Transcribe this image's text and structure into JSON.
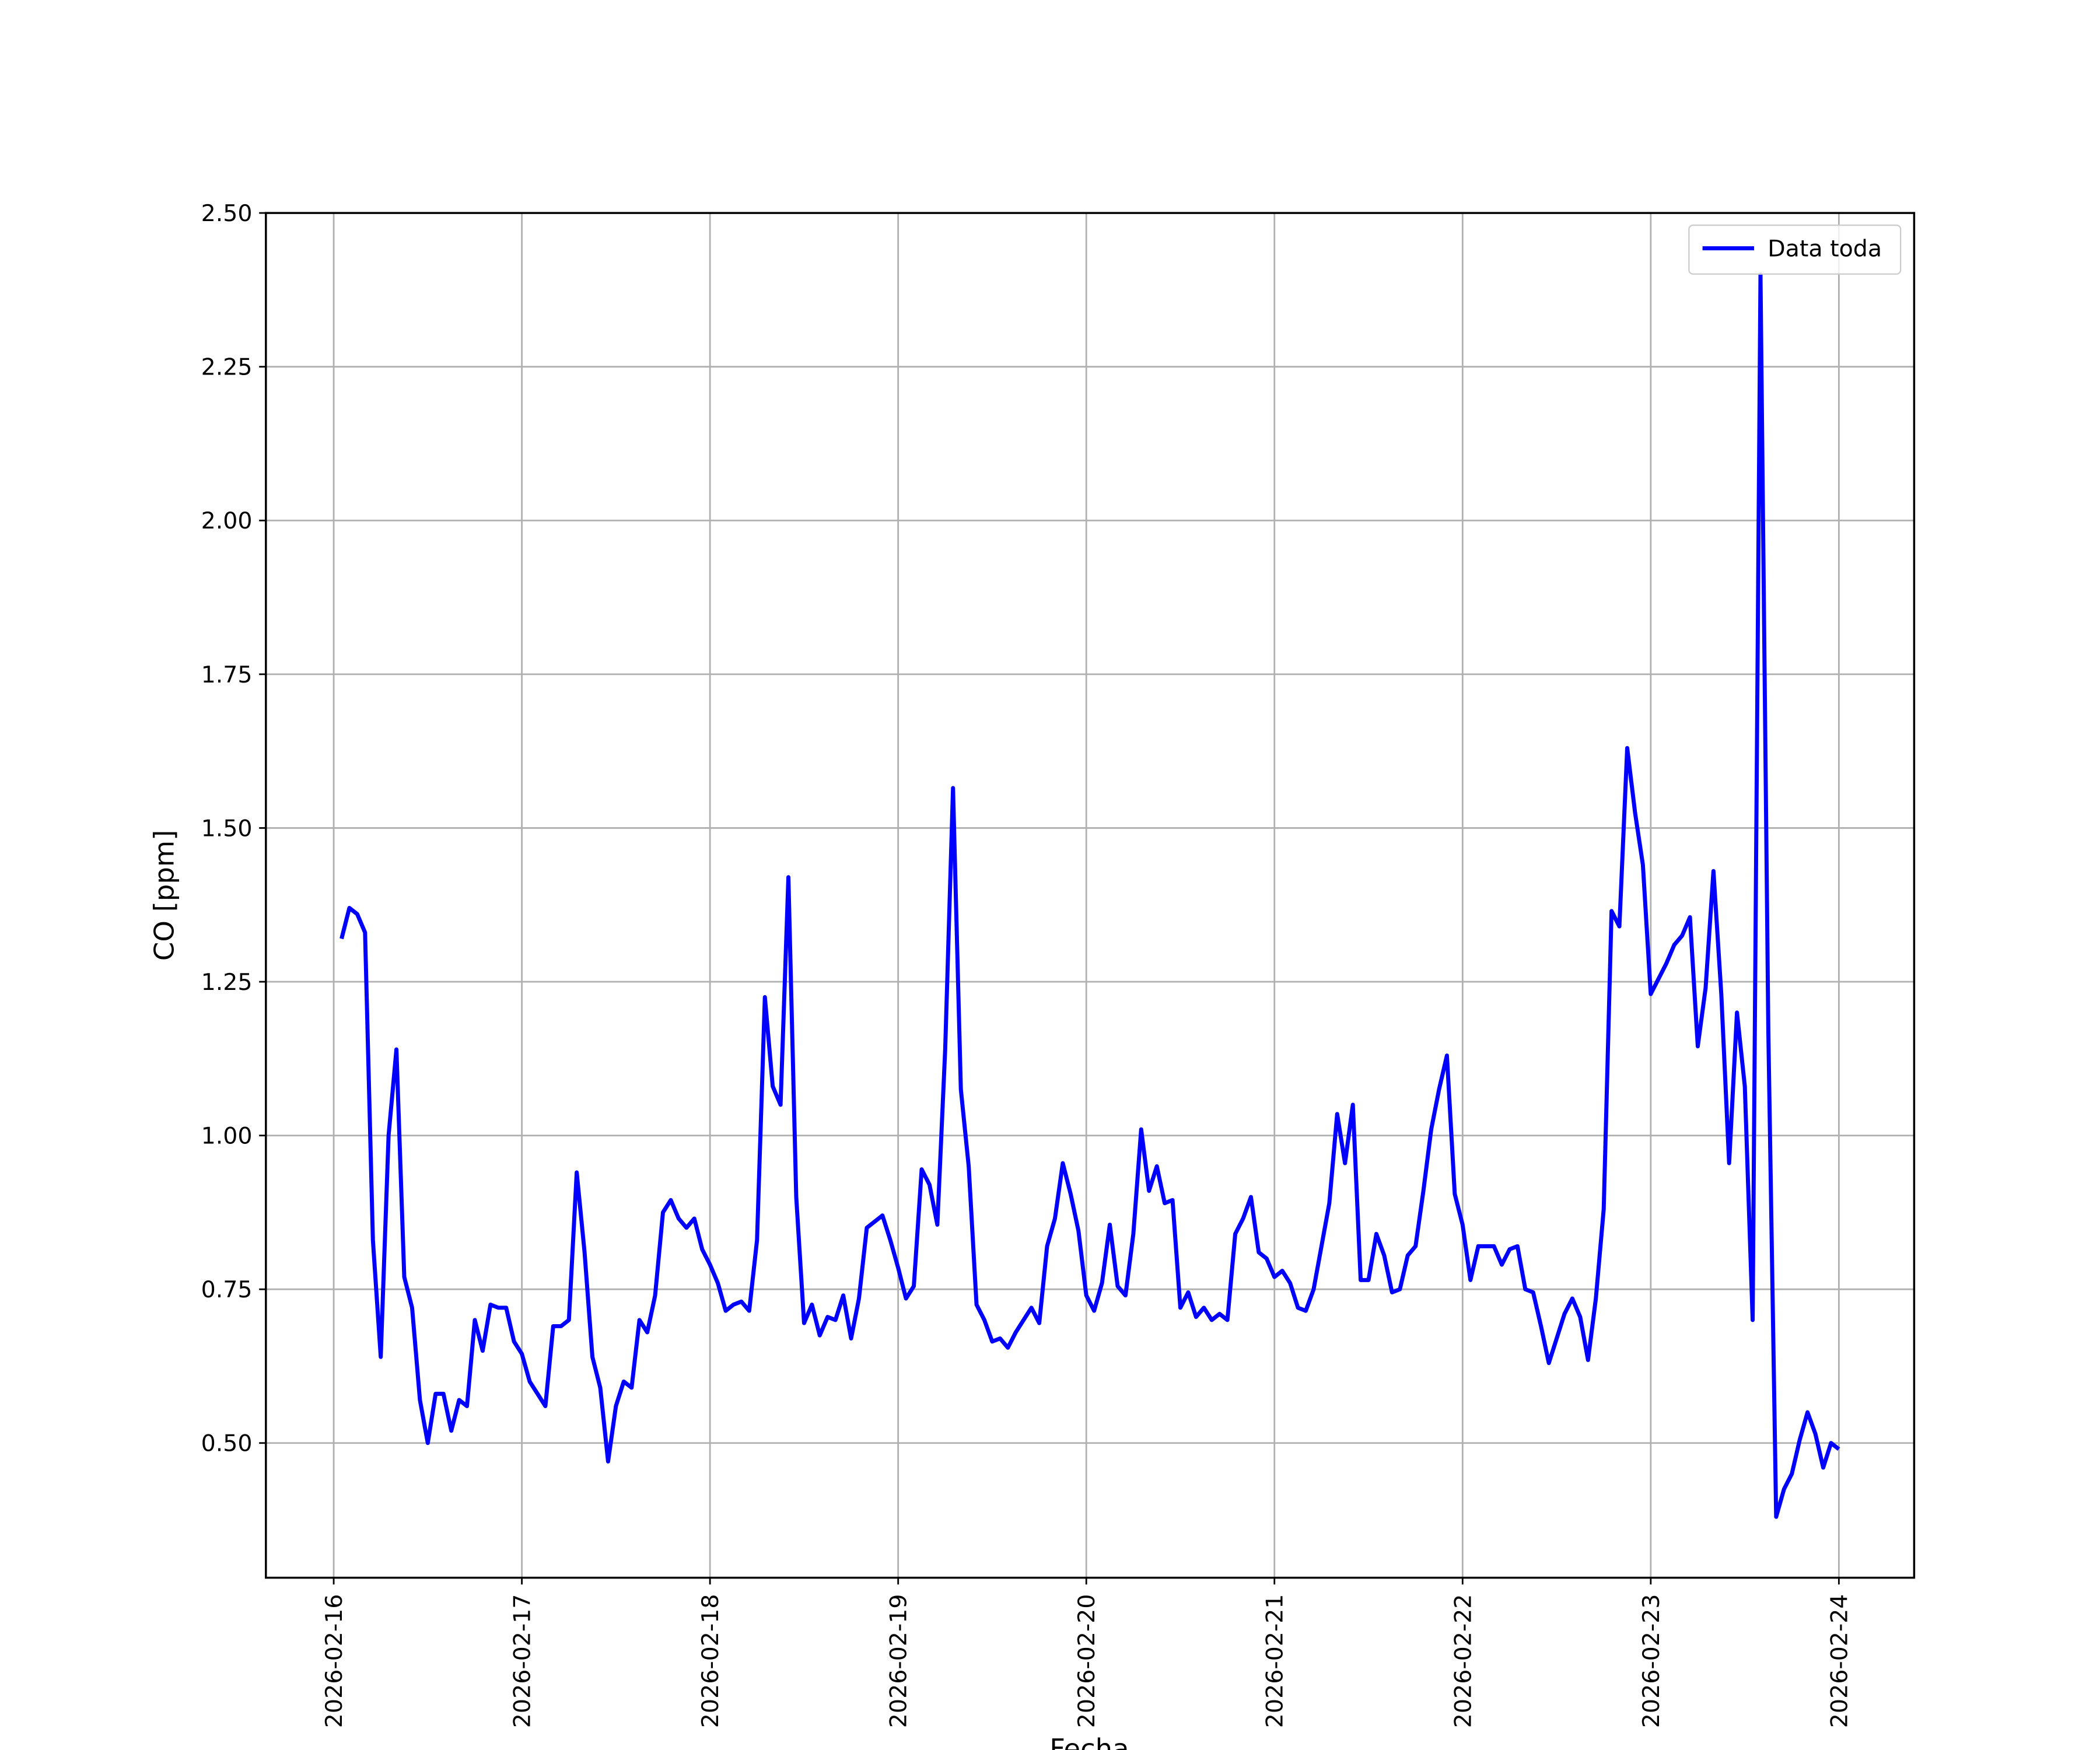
{
  "chart_data": {
    "type": "line",
    "xlabel": "Fecha",
    "ylabel": "CO [ppm]",
    "x": [
      "2026-02-16 01:00",
      "2026-02-16 02:00",
      "2026-02-16 03:00",
      "2026-02-16 04:00",
      "2026-02-16 05:00",
      "2026-02-16 06:00",
      "2026-02-16 07:00",
      "2026-02-16 08:00",
      "2026-02-16 09:00",
      "2026-02-16 10:00",
      "2026-02-16 11:00",
      "2026-02-16 12:00",
      "2026-02-16 13:00",
      "2026-02-16 14:00",
      "2026-02-16 15:00",
      "2026-02-16 16:00",
      "2026-02-16 17:00",
      "2026-02-16 18:00",
      "2026-02-16 19:00",
      "2026-02-16 20:00",
      "2026-02-16 21:00",
      "2026-02-16 22:00",
      "2026-02-16 23:00",
      "2026-02-17 00:00",
      "2026-02-17 01:00",
      "2026-02-17 02:00",
      "2026-02-17 03:00",
      "2026-02-17 04:00",
      "2026-02-17 05:00",
      "2026-02-17 06:00",
      "2026-02-17 07:00",
      "2026-02-17 08:00",
      "2026-02-17 09:00",
      "2026-02-17 10:00",
      "2026-02-17 11:00",
      "2026-02-17 12:00",
      "2026-02-17 13:00",
      "2026-02-17 14:00",
      "2026-02-17 15:00",
      "2026-02-17 16:00",
      "2026-02-17 17:00",
      "2026-02-17 18:00",
      "2026-02-17 19:00",
      "2026-02-17 20:00",
      "2026-02-17 21:00",
      "2026-02-17 22:00",
      "2026-02-17 23:00",
      "2026-02-18 00:00",
      "2026-02-18 01:00",
      "2026-02-18 02:00",
      "2026-02-18 03:00",
      "2026-02-18 04:00",
      "2026-02-18 05:00",
      "2026-02-18 06:00",
      "2026-02-18 07:00",
      "2026-02-18 08:00",
      "2026-02-18 09:00",
      "2026-02-18 10:00",
      "2026-02-18 11:00",
      "2026-02-18 12:00",
      "2026-02-18 13:00",
      "2026-02-18 14:00",
      "2026-02-18 15:00",
      "2026-02-18 16:00",
      "2026-02-18 17:00",
      "2026-02-18 18:00",
      "2026-02-18 19:00",
      "2026-02-18 20:00",
      "2026-02-18 21:00",
      "2026-02-18 22:00",
      "2026-02-18 23:00",
      "2026-02-19 00:00",
      "2026-02-19 01:00",
      "2026-02-19 02:00",
      "2026-02-19 03:00",
      "2026-02-19 04:00",
      "2026-02-19 05:00",
      "2026-02-19 06:00",
      "2026-02-19 07:00",
      "2026-02-19 08:00",
      "2026-02-19 09:00",
      "2026-02-19 10:00",
      "2026-02-19 11:00",
      "2026-02-19 12:00",
      "2026-02-19 13:00",
      "2026-02-19 14:00",
      "2026-02-19 15:00",
      "2026-02-19 16:00",
      "2026-02-19 17:00",
      "2026-02-19 18:00",
      "2026-02-19 19:00",
      "2026-02-19 20:00",
      "2026-02-19 21:00",
      "2026-02-19 22:00",
      "2026-02-19 23:00",
      "2026-02-20 00:00",
      "2026-02-20 01:00",
      "2026-02-20 02:00",
      "2026-02-20 03:00",
      "2026-02-20 04:00",
      "2026-02-20 05:00",
      "2026-02-20 06:00",
      "2026-02-20 07:00",
      "2026-02-20 08:00",
      "2026-02-20 09:00",
      "2026-02-20 10:00",
      "2026-02-20 11:00",
      "2026-02-20 12:00",
      "2026-02-20 13:00",
      "2026-02-20 14:00",
      "2026-02-20 15:00",
      "2026-02-20 16:00",
      "2026-02-20 17:00",
      "2026-02-20 18:00",
      "2026-02-20 19:00",
      "2026-02-20 20:00",
      "2026-02-20 21:00",
      "2026-02-20 22:00",
      "2026-02-20 23:00",
      "2026-02-21 00:00",
      "2026-02-21 01:00",
      "2026-02-21 02:00",
      "2026-02-21 03:00",
      "2026-02-21 04:00",
      "2026-02-21 05:00",
      "2026-02-21 06:00",
      "2026-02-21 07:00",
      "2026-02-21 08:00",
      "2026-02-21 09:00",
      "2026-02-21 10:00",
      "2026-02-21 11:00",
      "2026-02-21 12:00",
      "2026-02-21 13:00",
      "2026-02-21 14:00",
      "2026-02-21 15:00",
      "2026-02-21 16:00",
      "2026-02-21 17:00",
      "2026-02-21 18:00",
      "2026-02-21 19:00",
      "2026-02-21 20:00",
      "2026-02-21 21:00",
      "2026-02-21 22:00",
      "2026-02-21 23:00",
      "2026-02-22 00:00",
      "2026-02-22 01:00",
      "2026-02-22 02:00",
      "2026-02-22 03:00",
      "2026-02-22 04:00",
      "2026-02-22 05:00",
      "2026-02-22 06:00",
      "2026-02-22 07:00",
      "2026-02-22 08:00",
      "2026-02-22 09:00",
      "2026-02-22 10:00",
      "2026-02-22 11:00",
      "2026-02-22 12:00",
      "2026-02-22 13:00",
      "2026-02-22 14:00",
      "2026-02-22 15:00",
      "2026-02-22 16:00",
      "2026-02-22 17:00",
      "2026-02-22 18:00",
      "2026-02-22 19:00",
      "2026-02-22 20:00",
      "2026-02-22 21:00",
      "2026-02-22 22:00",
      "2026-02-22 23:00",
      "2026-02-23 00:00",
      "2026-02-23 01:00",
      "2026-02-23 02:00",
      "2026-02-23 03:00",
      "2026-02-23 04:00",
      "2026-02-23 05:00",
      "2026-02-23 06:00",
      "2026-02-23 07:00",
      "2026-02-23 08:00",
      "2026-02-23 09:00",
      "2026-02-23 10:00",
      "2026-02-23 11:00",
      "2026-02-23 12:00",
      "2026-02-23 13:00",
      "2026-02-23 14:00",
      "2026-02-23 15:00",
      "2026-02-23 16:00",
      "2026-02-23 17:00",
      "2026-02-23 18:00",
      "2026-02-23 19:00",
      "2026-02-23 20:00",
      "2026-02-23 21:00",
      "2026-02-23 22:00",
      "2026-02-23 23:00",
      "2026-02-24 00:00"
    ],
    "series": [
      {
        "name": "Data toda",
        "color": "#0000ff",
        "values": [
          1.32,
          1.37,
          1.36,
          1.33,
          0.83,
          0.64,
          1.0,
          1.14,
          0.77,
          0.72,
          0.57,
          0.5,
          0.58,
          0.58,
          0.52,
          0.57,
          0.56,
          0.7,
          0.65,
          0.725,
          0.72,
          0.72,
          0.665,
          0.645,
          0.6,
          0.58,
          0.56,
          0.69,
          0.69,
          0.7,
          0.94,
          0.81,
          0.64,
          0.59,
          0.47,
          0.56,
          0.6,
          0.59,
          0.7,
          0.68,
          0.74,
          0.875,
          0.895,
          0.865,
          0.85,
          0.865,
          0.815,
          0.79,
          0.76,
          0.715,
          0.725,
          0.73,
          0.715,
          0.83,
          1.225,
          1.08,
          1.05,
          1.42,
          0.9,
          0.695,
          0.725,
          0.675,
          0.705,
          0.7,
          0.74,
          0.67,
          0.735,
          0.85,
          0.86,
          0.87,
          0.83,
          0.785,
          0.735,
          0.755,
          0.945,
          0.92,
          0.855,
          1.14,
          1.565,
          1.075,
          0.95,
          0.725,
          0.7,
          0.665,
          0.67,
          0.655,
          0.68,
          0.7,
          0.72,
          0.695,
          0.82,
          0.865,
          0.955,
          0.905,
          0.845,
          0.74,
          0.715,
          0.76,
          0.855,
          0.755,
          0.74,
          0.84,
          1.01,
          0.91,
          0.95,
          0.89,
          0.895,
          0.72,
          0.745,
          0.705,
          0.72,
          0.7,
          0.71,
          0.7,
          0.84,
          0.865,
          0.9,
          0.81,
          0.8,
          0.77,
          0.78,
          0.76,
          0.72,
          0.715,
          0.75,
          0.82,
          0.89,
          1.035,
          0.955,
          1.05,
          0.765,
          0.765,
          0.84,
          0.805,
          0.745,
          0.75,
          0.805,
          0.82,
          0.91,
          1.01,
          1.075,
          1.13,
          0.905,
          0.855,
          0.765,
          0.82,
          0.82,
          0.82,
          0.79,
          0.815,
          0.82,
          0.75,
          0.745,
          0.69,
          0.63,
          0.67,
          0.71,
          0.735,
          0.705,
          0.635,
          0.735,
          0.88,
          1.365,
          1.34,
          1.63,
          1.525,
          1.44,
          1.23,
          1.255,
          1.28,
          1.31,
          1.325,
          1.355,
          1.145,
          1.24,
          1.43,
          1.23,
          0.955,
          1.2,
          1.08,
          0.7,
          2.4,
          1.17,
          0.38,
          0.425,
          0.45,
          0.505,
          0.55,
          0.515,
          0.46,
          0.5,
          0.49
        ]
      }
    ],
    "xlim": [
      "2026-02-15 15:21",
      "2026-02-24 09:36"
    ],
    "xticks": [
      "2026-02-16",
      "2026-02-17",
      "2026-02-18",
      "2026-02-19",
      "2026-02-20",
      "2026-02-21",
      "2026-02-22",
      "2026-02-23",
      "2026-02-24"
    ],
    "ylim": [
      0.281,
      2.5
    ],
    "yticks": [
      {
        "value": 0.5,
        "label": "0.50"
      },
      {
        "value": 0.75,
        "label": "0.75"
      },
      {
        "value": 1.0,
        "label": "1.00"
      },
      {
        "value": 1.25,
        "label": "1.25"
      },
      {
        "value": 1.5,
        "label": "1.50"
      },
      {
        "value": 1.75,
        "label": "1.75"
      },
      {
        "value": 2.0,
        "label": "2.00"
      },
      {
        "value": 2.25,
        "label": "2.25"
      },
      {
        "value": 2.5,
        "label": "2.50"
      }
    ],
    "grid": true,
    "legend": "upper right"
  }
}
